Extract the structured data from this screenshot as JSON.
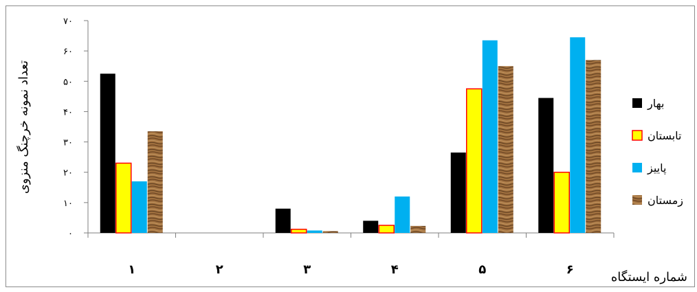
{
  "chart_data": {
    "type": "bar",
    "title": "",
    "ylabel": "تعداد نمونه خرچنگ منزوی",
    "xlabel": "شماره ایستگاه",
    "ylim": [
      0,
      70
    ],
    "yticks": [
      0,
      10,
      20,
      30,
      40,
      50,
      60,
      70
    ],
    "ytick_labels": [
      "۰",
      "۱۰",
      "۲۰",
      "۳۰",
      "۴۰",
      "۵۰",
      "۶۰",
      "۷۰"
    ],
    "categories": [
      "۱",
      "۲",
      "۳",
      "۴",
      "۵",
      "۶"
    ],
    "series": [
      {
        "name": "بهار",
        "values": [
          52.5,
          0,
          8,
          4,
          26.5,
          44.5
        ],
        "color": "#000000"
      },
      {
        "name": "تابستان",
        "values": [
          23,
          0,
          1.2,
          2.5,
          47.5,
          20
        ],
        "color": "#ffff00",
        "stroke": "#ff0000"
      },
      {
        "name": "پاییز",
        "values": [
          17,
          0,
          0.8,
          12,
          63.5,
          64.5
        ],
        "color": "#00b0f0"
      },
      {
        "name": "زمستان",
        "values": [
          33.5,
          0,
          0.6,
          2.3,
          55,
          57
        ],
        "color": "#9c6a3e",
        "texture": "wood"
      }
    ],
    "grid": false,
    "legend_position": "right"
  }
}
